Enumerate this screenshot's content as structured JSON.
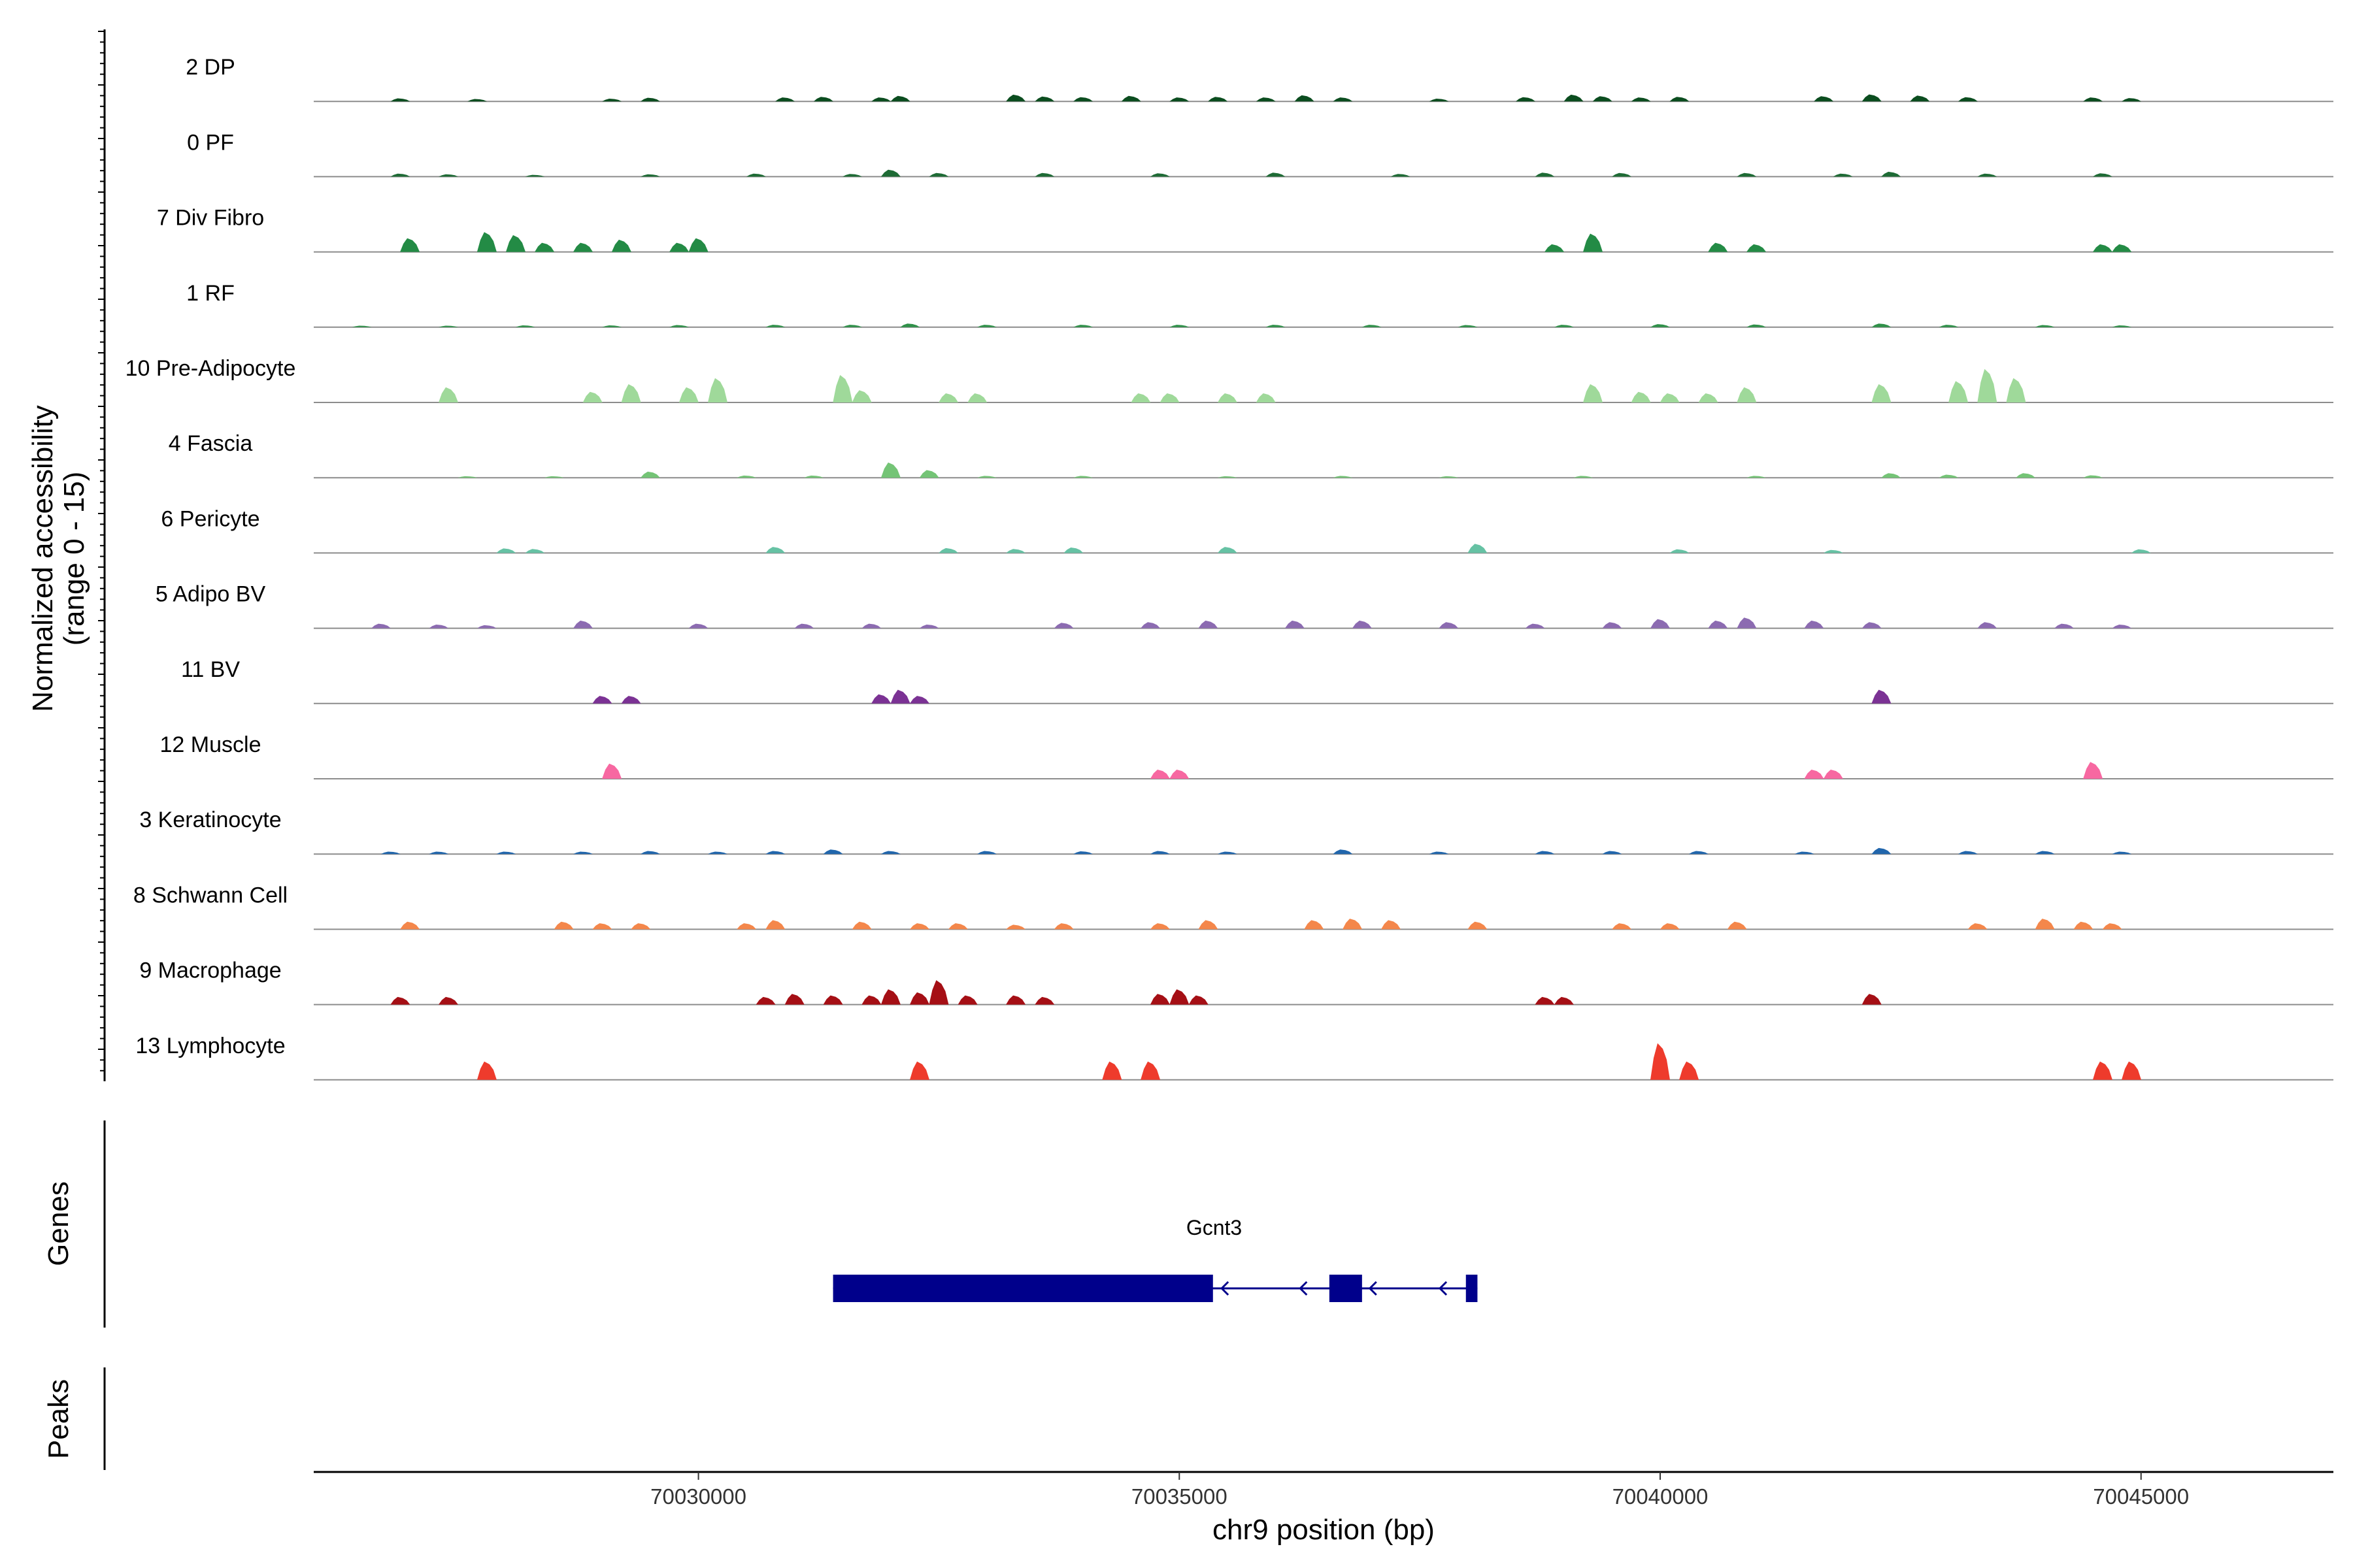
{
  "chart_data": {
    "type": "area",
    "title": "",
    "xlabel": "chr9 position (bp)",
    "ylabel_line1": "Normalized accessibility",
    "ylabel_line2": "(range 0 - 15)",
    "ylim": [
      0,
      15
    ],
    "xlim": [
      70026000,
      70047000
    ],
    "x_ticks": [
      70030000,
      70035000,
      70040000,
      70045000
    ],
    "x_tick_labels": [
      "70030000",
      "70035000",
      "70040000",
      "70045000"
    ],
    "grid": false,
    "legend": "none",
    "track_baseline_color": "#8c8c8c",
    "series": [
      {
        "name": "2 DP",
        "color": "#0b4d1f",
        "peaks": [
          [
            70026900,
            1.0
          ],
          [
            70027700,
            0.8
          ],
          [
            70029100,
            0.9
          ],
          [
            70029500,
            1.2
          ],
          [
            70030900,
            1.3
          ],
          [
            70031300,
            1.5
          ],
          [
            70031900,
            1.3
          ],
          [
            70032100,
            1.8
          ],
          [
            70033300,
            2.2
          ],
          [
            70033600,
            1.6
          ],
          [
            70034000,
            1.4
          ],
          [
            70034500,
            1.8
          ],
          [
            70035000,
            1.3
          ],
          [
            70035400,
            1.5
          ],
          [
            70035900,
            1.3
          ],
          [
            70036300,
            2.0
          ],
          [
            70036700,
            1.3
          ],
          [
            70037700,
            0.9
          ],
          [
            70038600,
            1.4
          ],
          [
            70039100,
            2.2
          ],
          [
            70039400,
            1.7
          ],
          [
            70039800,
            1.3
          ],
          [
            70040200,
            1.5
          ],
          [
            70041700,
            1.7
          ],
          [
            70042200,
            2.3
          ],
          [
            70042700,
            1.9
          ],
          [
            70043200,
            1.4
          ],
          [
            70044500,
            1.3
          ],
          [
            70044900,
            1.1
          ]
        ]
      },
      {
        "name": "0 PF",
        "color": "#1e6b35",
        "peaks": [
          [
            70026900,
            1.0
          ],
          [
            70027400,
            0.8
          ],
          [
            70028300,
            0.6
          ],
          [
            70029500,
            0.8
          ],
          [
            70030600,
            1.0
          ],
          [
            70031600,
            0.9
          ],
          [
            70032000,
            2.3
          ],
          [
            70032500,
            1.2
          ],
          [
            70033600,
            1.2
          ],
          [
            70034800,
            1.1
          ],
          [
            70036000,
            1.3
          ],
          [
            70037300,
            0.9
          ],
          [
            70038800,
            1.3
          ],
          [
            70039600,
            1.2
          ],
          [
            70040900,
            1.2
          ],
          [
            70041900,
            1.0
          ],
          [
            70042400,
            1.6
          ],
          [
            70043400,
            1.0
          ],
          [
            70044600,
            1.1
          ]
        ]
      },
      {
        "name": "7 Div Fibro",
        "color": "#238b45",
        "peaks": [
          [
            70027000,
            4.5
          ],
          [
            70027800,
            6.5
          ],
          [
            70028100,
            5.5
          ],
          [
            70028400,
            3.0
          ],
          [
            70028800,
            3.0
          ],
          [
            70029200,
            4.0
          ],
          [
            70029800,
            3.0
          ],
          [
            70030000,
            4.5
          ],
          [
            70038900,
            2.5
          ],
          [
            70039300,
            6.0
          ],
          [
            70040600,
            3.0
          ],
          [
            70041000,
            2.5
          ],
          [
            70044600,
            2.5
          ],
          [
            70044800,
            2.5
          ]
        ]
      },
      {
        "name": "1 RF",
        "color": "#2f9149",
        "peaks": [
          [
            70026500,
            0.5
          ],
          [
            70027400,
            0.5
          ],
          [
            70028200,
            0.6
          ],
          [
            70029100,
            0.6
          ],
          [
            70029800,
            0.7
          ],
          [
            70030800,
            0.8
          ],
          [
            70031600,
            0.8
          ],
          [
            70032200,
            1.2
          ],
          [
            70033000,
            0.8
          ],
          [
            70034000,
            0.8
          ],
          [
            70035000,
            0.8
          ],
          [
            70036000,
            0.8
          ],
          [
            70037000,
            0.8
          ],
          [
            70038000,
            0.7
          ],
          [
            70039000,
            0.8
          ],
          [
            70040000,
            1.0
          ],
          [
            70041000,
            0.9
          ],
          [
            70042300,
            1.2
          ],
          [
            70043000,
            0.8
          ],
          [
            70044000,
            0.7
          ],
          [
            70044800,
            0.6
          ]
        ]
      },
      {
        "name": "10 Pre-Adipocyte",
        "color": "#9fd99a",
        "peaks": [
          [
            70027400,
            5.0
          ],
          [
            70028900,
            3.5
          ],
          [
            70029300,
            6.0
          ],
          [
            70029900,
            5.0
          ],
          [
            70030200,
            8.0
          ],
          [
            70031500,
            9.0
          ],
          [
            70031700,
            4.0
          ],
          [
            70032600,
            3.0
          ],
          [
            70032900,
            3.0
          ],
          [
            70034600,
            3.0
          ],
          [
            70034900,
            3.0
          ],
          [
            70035500,
            3.0
          ],
          [
            70035900,
            3.0
          ],
          [
            70039300,
            6.0
          ],
          [
            70039800,
            3.5
          ],
          [
            70040100,
            3.0
          ],
          [
            70040500,
            3.0
          ],
          [
            70040900,
            5.0
          ],
          [
            70042300,
            6.0
          ],
          [
            70043100,
            7.0
          ],
          [
            70043400,
            11.0
          ],
          [
            70043700,
            8.0
          ]
        ]
      },
      {
        "name": "4 Fascia",
        "color": "#74c476",
        "peaks": [
          [
            70027600,
            0.5
          ],
          [
            70028500,
            0.5
          ],
          [
            70029500,
            2.0
          ],
          [
            70030500,
            0.7
          ],
          [
            70031200,
            0.7
          ],
          [
            70032000,
            5.0
          ],
          [
            70032400,
            2.5
          ],
          [
            70033000,
            0.6
          ],
          [
            70034000,
            0.6
          ],
          [
            70035500,
            0.5
          ],
          [
            70036700,
            0.6
          ],
          [
            70037800,
            0.5
          ],
          [
            70039200,
            0.6
          ],
          [
            70041000,
            0.6
          ],
          [
            70042400,
            1.5
          ],
          [
            70043000,
            1.0
          ],
          [
            70043800,
            1.5
          ],
          [
            70044500,
            0.8
          ]
        ]
      },
      {
        "name": "6 Pericyte",
        "color": "#66c2a4",
        "peaks": [
          [
            70028000,
            1.5
          ],
          [
            70028300,
            1.3
          ],
          [
            70030800,
            2.0
          ],
          [
            70032600,
            1.6
          ],
          [
            70033300,
            1.3
          ],
          [
            70033900,
            1.8
          ],
          [
            70035500,
            2.0
          ],
          [
            70038100,
            3.0
          ],
          [
            70040200,
            1.2
          ],
          [
            70041800,
            1.0
          ],
          [
            70045000,
            1.2
          ]
        ]
      },
      {
        "name": "5 Adipo BV",
        "color": "#8c6bb1",
        "peaks": [
          [
            70026700,
            1.5
          ],
          [
            70027300,
            1.2
          ],
          [
            70027800,
            1.0
          ],
          [
            70028800,
            2.5
          ],
          [
            70030000,
            1.5
          ],
          [
            70031100,
            1.5
          ],
          [
            70031800,
            1.5
          ],
          [
            70032400,
            1.2
          ],
          [
            70033800,
            1.8
          ],
          [
            70034700,
            2.0
          ],
          [
            70035300,
            2.5
          ],
          [
            70036200,
            2.5
          ],
          [
            70036900,
            2.5
          ],
          [
            70037800,
            2.0
          ],
          [
            70038700,
            1.5
          ],
          [
            70039500,
            2.0
          ],
          [
            70040000,
            3.0
          ],
          [
            70040600,
            2.5
          ],
          [
            70040900,
            3.5
          ],
          [
            70041600,
            2.5
          ],
          [
            70042200,
            2.0
          ],
          [
            70043400,
            2.0
          ],
          [
            70044200,
            1.5
          ],
          [
            70044800,
            1.2
          ]
        ]
      },
      {
        "name": "11 BV",
        "color": "#7b3294",
        "peaks": [
          [
            70029000,
            2.5
          ],
          [
            70029300,
            2.5
          ],
          [
            70031900,
            3.0
          ],
          [
            70032100,
            4.5
          ],
          [
            70032300,
            2.5
          ],
          [
            70042300,
            4.5
          ]
        ]
      },
      {
        "name": "12 Muscle",
        "color": "#f768a1",
        "peaks": [
          [
            70029100,
            5.0
          ],
          [
            70034800,
            3.0
          ],
          [
            70035000,
            3.0
          ],
          [
            70041600,
            3.0
          ],
          [
            70041800,
            3.0
          ],
          [
            70044500,
            5.5
          ]
        ]
      },
      {
        "name": "3 Keratinocyte",
        "color": "#2166ac",
        "peaks": [
          [
            70026800,
            0.8
          ],
          [
            70027300,
            0.8
          ],
          [
            70028000,
            0.8
          ],
          [
            70028800,
            0.8
          ],
          [
            70029500,
            1.0
          ],
          [
            70030200,
            0.8
          ],
          [
            70030800,
            1.0
          ],
          [
            70031400,
            1.5
          ],
          [
            70032000,
            1.0
          ],
          [
            70033000,
            1.0
          ],
          [
            70034000,
            0.9
          ],
          [
            70034800,
            1.0
          ],
          [
            70035500,
            0.8
          ],
          [
            70036700,
            1.5
          ],
          [
            70037700,
            0.8
          ],
          [
            70038800,
            1.0
          ],
          [
            70039500,
            1.0
          ],
          [
            70040400,
            1.0
          ],
          [
            70041500,
            0.8
          ],
          [
            70042300,
            2.0
          ],
          [
            70043200,
            1.0
          ],
          [
            70044000,
            1.0
          ],
          [
            70044800,
            0.8
          ]
        ]
      },
      {
        "name": "8 Schwann Cell",
        "color": "#f4874b",
        "peaks": [
          [
            70027000,
            2.5
          ],
          [
            70028600,
            2.5
          ],
          [
            70029000,
            2.0
          ],
          [
            70029400,
            2.0
          ],
          [
            70030500,
            2.0
          ],
          [
            70030800,
            3.0
          ],
          [
            70031700,
            2.5
          ],
          [
            70032300,
            2.0
          ],
          [
            70032700,
            2.0
          ],
          [
            70033300,
            1.5
          ],
          [
            70033800,
            2.0
          ],
          [
            70034800,
            2.0
          ],
          [
            70035300,
            3.0
          ],
          [
            70036400,
            3.0
          ],
          [
            70036800,
            3.5
          ],
          [
            70037200,
            3.0
          ],
          [
            70038100,
            2.5
          ],
          [
            70039600,
            2.0
          ],
          [
            70040100,
            2.0
          ],
          [
            70040800,
            2.5
          ],
          [
            70043300,
            2.0
          ],
          [
            70044000,
            3.5
          ],
          [
            70044400,
            2.5
          ],
          [
            70044700,
            2.0
          ]
        ]
      },
      {
        "name": "9 Macrophage",
        "color": "#a50f15",
        "peaks": [
          [
            70026900,
            2.5
          ],
          [
            70027400,
            2.5
          ],
          [
            70030700,
            2.5
          ],
          [
            70031000,
            3.5
          ],
          [
            70031400,
            3.0
          ],
          [
            70031800,
            3.0
          ],
          [
            70032000,
            5.0
          ],
          [
            70032300,
            4.0
          ],
          [
            70032500,
            8.0
          ],
          [
            70032800,
            3.0
          ],
          [
            70033300,
            3.0
          ],
          [
            70033600,
            2.5
          ],
          [
            70034800,
            3.5
          ],
          [
            70035000,
            5.0
          ],
          [
            70035200,
            3.0
          ],
          [
            70038800,
            2.5
          ],
          [
            70039000,
            2.5
          ],
          [
            70042200,
            3.5
          ]
        ]
      },
      {
        "name": "13 Lymphocyte",
        "color": "#ee3b2c",
        "peaks": [
          [
            70027800,
            6.0
          ],
          [
            70032300,
            6.0
          ],
          [
            70034300,
            6.0
          ],
          [
            70034700,
            6.0
          ],
          [
            70040000,
            12.0
          ],
          [
            70040300,
            6.0
          ],
          [
            70044600,
            6.0
          ],
          [
            70044900,
            6.0
          ]
        ]
      }
    ],
    "genes_track_title": "Genes",
    "genes": [
      {
        "name": "Gcnt3",
        "strand": "-",
        "color": "#00008b",
        "exons": [
          [
            70031400,
            70035350
          ],
          [
            70036560,
            70036900
          ],
          [
            70037980,
            70038100
          ]
        ],
        "span": [
          70031400,
          70038100
        ]
      }
    ],
    "peaks_track_title": "Peaks"
  }
}
